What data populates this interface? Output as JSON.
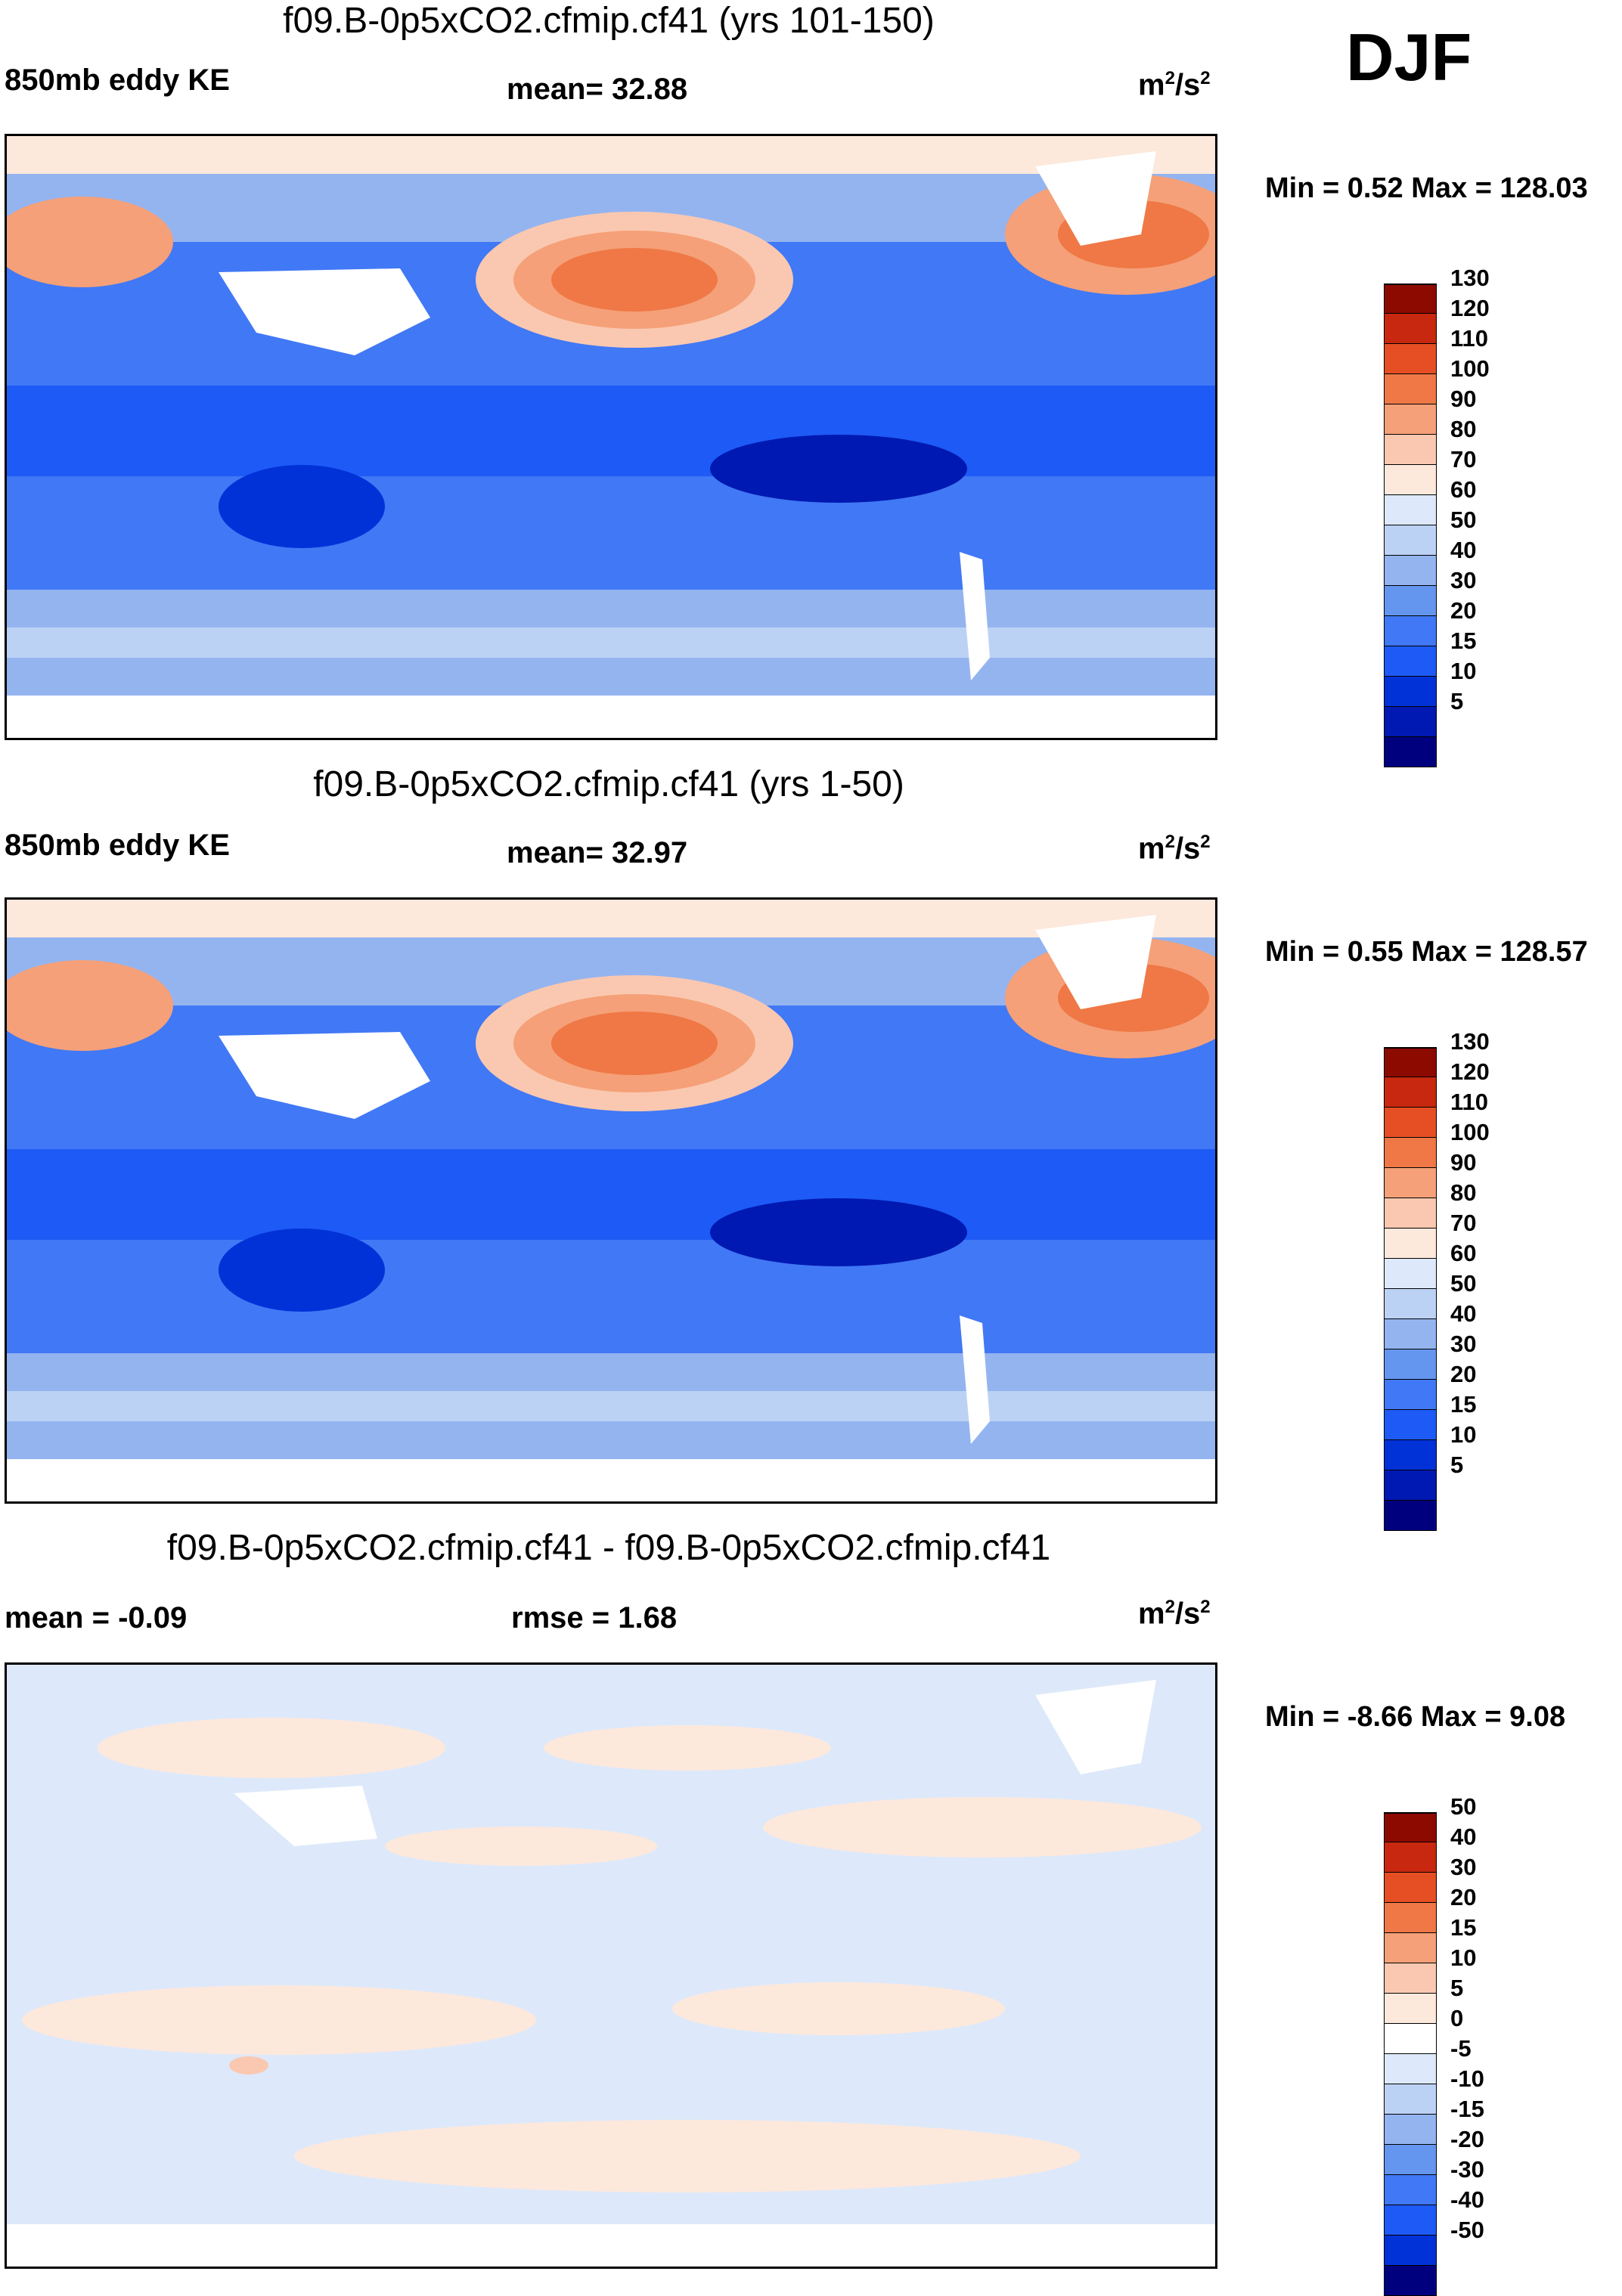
{
  "season": "DJF",
  "units_sup": "2",
  "colors": {
    "abs_scale": [
      "#00007f",
      "#0019b2",
      "#0032d8",
      "#1e5af5",
      "#4178f5",
      "#6496f0",
      "#94b4f0",
      "#bcd2f5",
      "#dde9fa",
      "#fde8dc",
      "#fac8b0",
      "#f5a078",
      "#ef7846",
      "#e64f23",
      "#c8280f",
      "#8c0a00"
    ],
    "diff_scale": [
      "#00007f",
      "#0019b2",
      "#0032d8",
      "#1e5af5",
      "#4178f5",
      "#6496f0",
      "#94b4f0",
      "#bcd2f5",
      "#dde9fa",
      "#fde8dc",
      "#fac8b0",
      "#f5a078",
      "#ef7846",
      "#e64f23",
      "#c8280f",
      "#8c0a00"
    ]
  },
  "chart_data": [
    {
      "type": "heatmap",
      "title": "f09.B-0p5xCO2.cfmip.cf41 (yrs 101-150)",
      "left_label": "850mb eddy KE",
      "center_label": "mean=  32.88",
      "units": "m",
      "units_tail": "/s",
      "min_text": "Min =   0.52 Max = 128.03",
      "colorbar_levels": [
        "130",
        "120",
        "110",
        "100",
        "90",
        "80",
        "70",
        "60",
        "50",
        "40",
        "30",
        "20",
        "15",
        "10",
        "5"
      ],
      "min": 0.52,
      "max": 128.03,
      "mean": 32.88
    },
    {
      "type": "heatmap",
      "title": "f09.B-0p5xCO2.cfmip.cf41 (yrs 1-50)",
      "left_label": "850mb eddy KE",
      "center_label": "mean=  32.97",
      "units": "m",
      "units_tail": "/s",
      "min_text": "Min =   0.55 Max = 128.57",
      "colorbar_levels": [
        "130",
        "120",
        "110",
        "100",
        "90",
        "80",
        "70",
        "60",
        "50",
        "40",
        "30",
        "20",
        "15",
        "10",
        "5"
      ],
      "min": 0.55,
      "max": 128.57,
      "mean": 32.97
    },
    {
      "type": "heatmap",
      "title": "f09.B-0p5xCO2.cfmip.cf41 - f09.B-0p5xCO2.cfmip.cf41",
      "left_label": "mean =  -0.09",
      "center_label": "rmse =    1.68",
      "units": "m",
      "units_tail": "/s",
      "min_text": "Min =  -8.66 Max =   9.08",
      "colorbar_levels": [
        "50",
        "40",
        "30",
        "20",
        "15",
        "10",
        "5",
        "0",
        "-5",
        "-10",
        "-15",
        "-20",
        "-30",
        "-40",
        "-50"
      ],
      "min": -8.66,
      "max": 9.08,
      "mean": -0.09,
      "rmse": 1.68
    }
  ]
}
